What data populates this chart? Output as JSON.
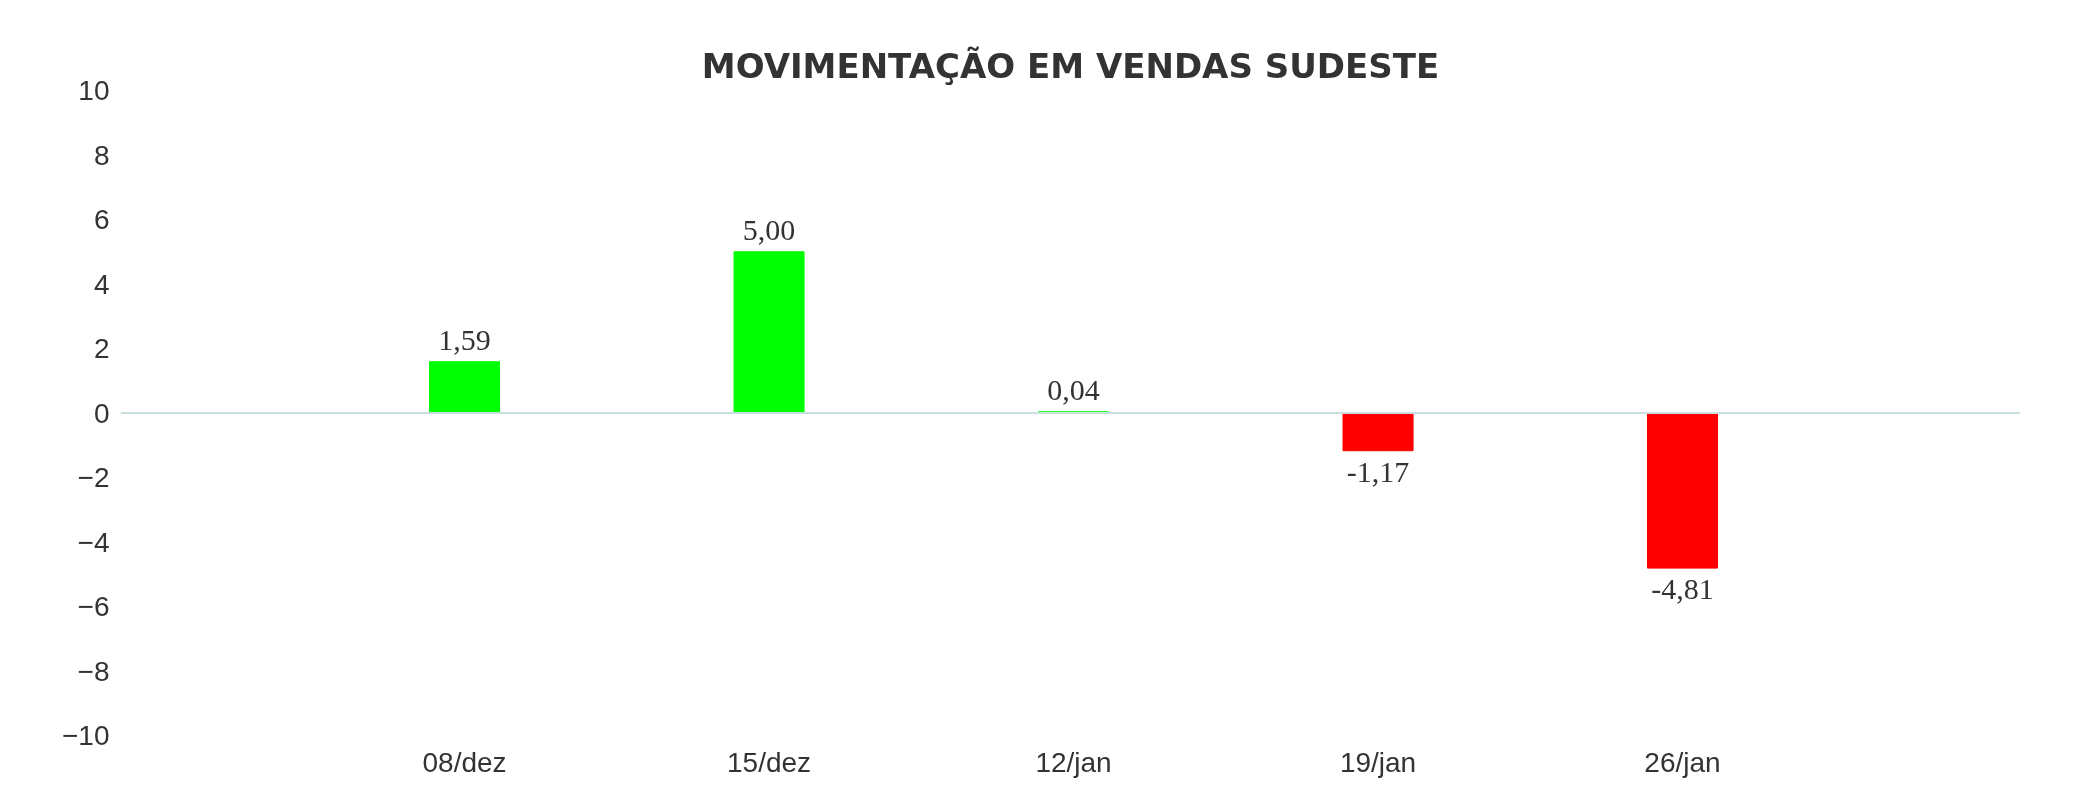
{
  "chart_data": {
    "type": "bar",
    "title": "MOVIMENTAÇÃO EM VENDAS SUDESTE",
    "categories": [
      "08/dez",
      "15/dez",
      "12/jan",
      "19/jan",
      "26/jan"
    ],
    "values": [
      1.59,
      5.0,
      0.04,
      -1.17,
      -4.81
    ],
    "colors": [
      "#00ff00",
      "#00ff00",
      "#00ff00",
      "#ff0000",
      "#ff0000"
    ],
    "value_labels": [
      "1,59",
      "5,00",
      "0,04",
      "-1,17",
      "-4,81"
    ],
    "ylim": [
      -10,
      10
    ],
    "yticks": [
      -10,
      -8,
      -6,
      -4,
      -2,
      0,
      2,
      4,
      6,
      8,
      10
    ],
    "ref_lines": [
      {
        "axis": "y",
        "value": 0,
        "color": "#c9dede"
      }
    ],
    "grid": false
  }
}
